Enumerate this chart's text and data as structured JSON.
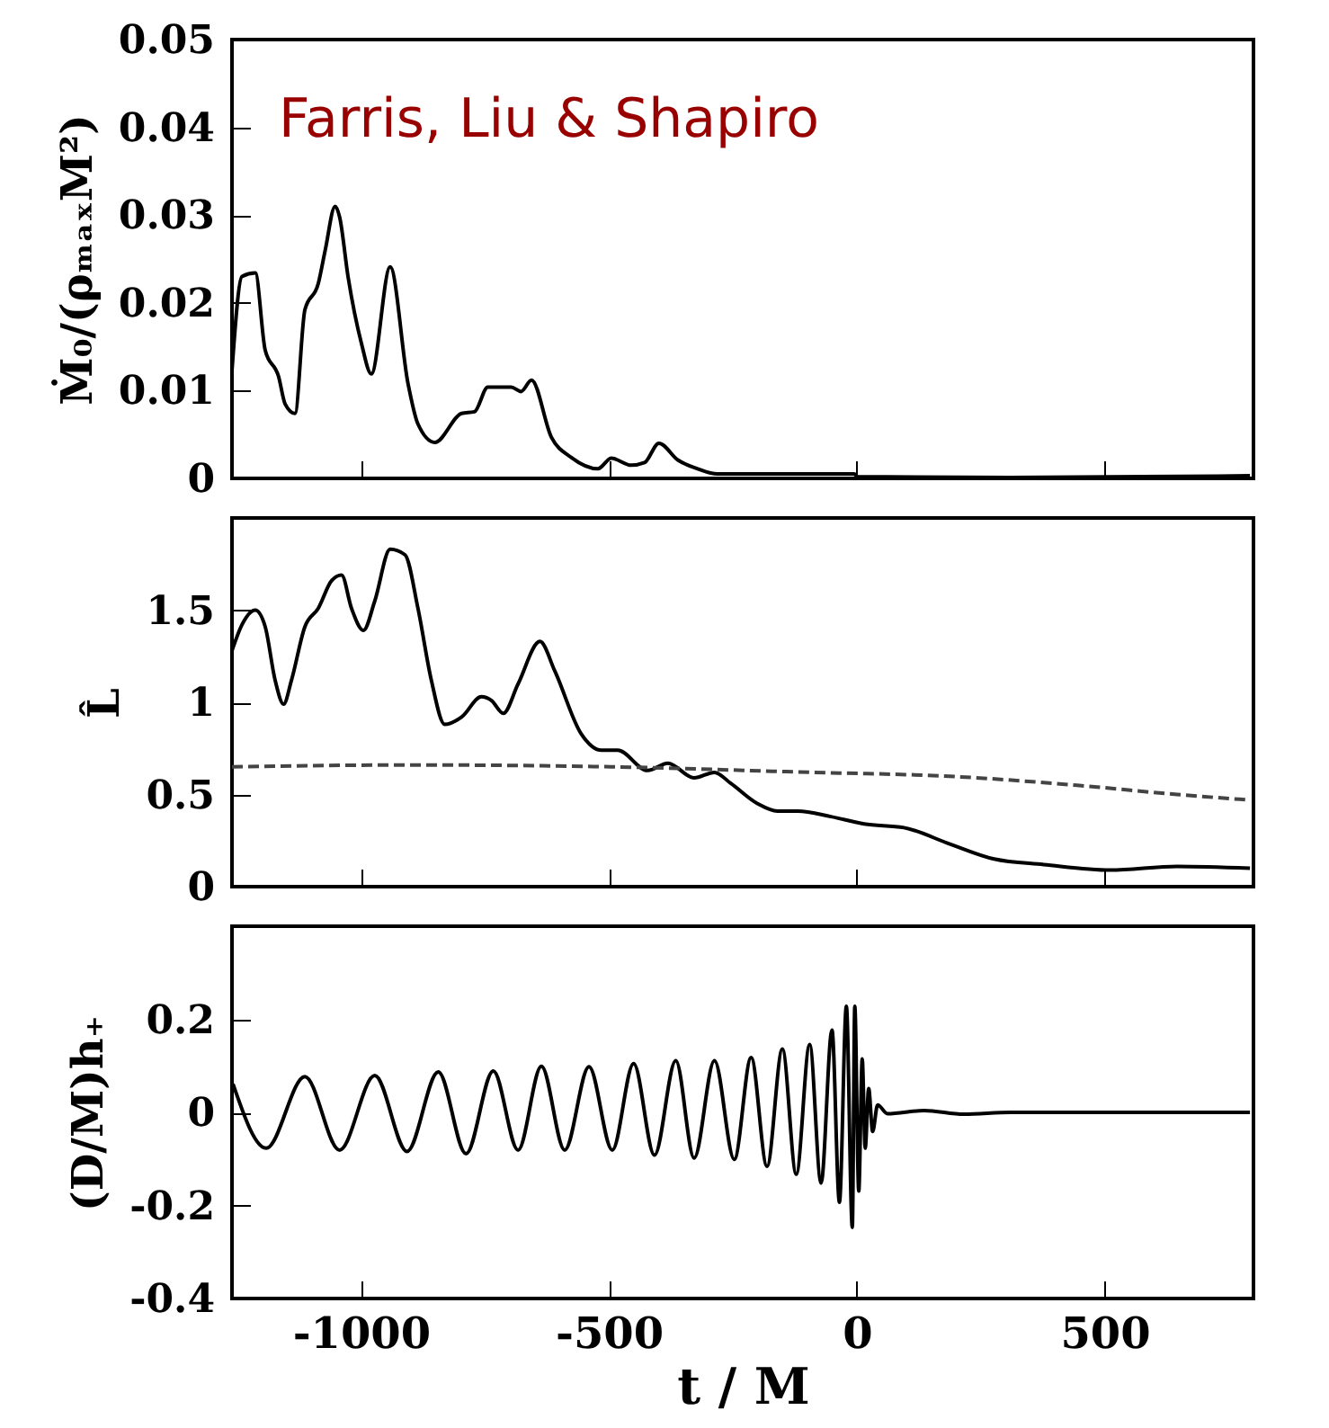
{
  "chart_data": [
    {
      "type": "line",
      "ylabel": "Ṁ₀/(ρₘₐₓM²)",
      "annotations": [
        "Farris, Liu & Shapiro"
      ],
      "xlim": [
        -1260,
        800
      ],
      "xticks": [
        -1000,
        -500,
        0,
        500
      ],
      "ylim": [
        0,
        0.05
      ],
      "yticks": [
        0,
        0.01,
        0.02,
        0.03,
        0.04,
        0.05
      ],
      "tick_labels": "y",
      "series": [
        {
          "color": "#000000",
          "x": [
            -1260,
            -1240,
            -1213,
            -1193,
            -1166,
            -1153,
            -1133,
            -1113,
            -1086,
            -1072,
            -1052,
            -1043,
            -1026,
            -999,
            -979,
            -941,
            -905,
            -885,
            -851,
            -797,
            -771,
            -744,
            -697,
            -677,
            -656,
            -616,
            -576,
            -522,
            -495,
            -455,
            -428,
            -399,
            -361,
            -321,
            -281,
            -93,
            -5,
            1,
            310,
            793
          ],
          "values": [
            0.0123,
            0.023,
            0.0234,
            0.0146,
            0.0116,
            0.0085,
            0.0074,
            0.0192,
            0.0222,
            0.026,
            0.031,
            0.0298,
            0.023,
            0.0154,
            0.0119,
            0.0241,
            0.0108,
            0.0062,
            0.0041,
            0.0074,
            0.0076,
            0.0104,
            0.0104,
            0.0099,
            0.0112,
            0.0047,
            0.0024,
            0.0011,
            0.0023,
            0.0015,
            0.0018,
            0.004,
            0.0021,
            0.0011,
            0.0005,
            0.0005,
            0.0005,
            0.0002,
            0.0001,
            0.0003
          ]
        }
      ]
    },
    {
      "type": "line",
      "ylabel": "L̂",
      "xlim": [
        -1260,
        800
      ],
      "xticks": [
        -1000,
        -500,
        0,
        500
      ],
      "ylim": [
        0,
        2
      ],
      "yticks": [
        0,
        0.5,
        1,
        1.5
      ],
      "tick_labels": "y",
      "series": [
        {
          "color": "#000000",
          "x": [
            -1260,
            -1240,
            -1213,
            -1193,
            -1173,
            -1156,
            -1140,
            -1113,
            -1086,
            -1059,
            -1039,
            -1019,
            -995,
            -972,
            -941,
            -911,
            -885,
            -858,
            -831,
            -797,
            -757,
            -737,
            -713,
            -683,
            -639,
            -609,
            -556,
            -515,
            -482,
            -422,
            -381,
            -328,
            -287,
            -254,
            -200,
            -160,
            -119,
            -52,
            15,
            95,
            189,
            277,
            377,
            511,
            646,
            793
          ],
          "values": [
            1.28,
            1.42,
            1.5,
            1.41,
            1.12,
            0.99,
            1.12,
            1.41,
            1.51,
            1.66,
            1.69,
            1.51,
            1.39,
            1.55,
            1.83,
            1.8,
            1.51,
            1.12,
            0.88,
            0.92,
            1.03,
            1.01,
            0.94,
            1.1,
            1.33,
            1.17,
            0.83,
            0.74,
            0.74,
            0.63,
            0.67,
            0.59,
            0.62,
            0.56,
            0.45,
            0.41,
            0.41,
            0.38,
            0.34,
            0.32,
            0.23,
            0.15,
            0.12,
            0.09,
            0.11,
            0.1
          ]
        },
        {
          "color": "#444444",
          "line_style": "dashed",
          "x": [
            -1260,
            -898,
            -495,
            -93,
            176,
            444,
            646,
            793
          ],
          "values": [
            0.65,
            0.66,
            0.65,
            0.62,
            0.6,
            0.55,
            0.5,
            0.47
          ]
        }
      ]
    },
    {
      "type": "line",
      "xlabel": "t / M",
      "ylabel": "(D/M)h₊",
      "xlim": [
        -1260,
        800
      ],
      "xticks": [
        -1000,
        -500,
        0,
        500
      ],
      "ylim": [
        -0.4,
        0.4
      ],
      "yticks": [
        -0.4,
        -0.2,
        0,
        0.2
      ],
      "series": [
        {
          "color": "#000000",
          "x": [
            -1258,
            -1191,
            -1113,
            -1043,
            -972,
            -907,
            -844,
            -788,
            -733,
            -683,
            -636,
            -589,
            -540,
            -493,
            -450,
            -408,
            -365,
            -328,
            -287,
            -247,
            -213,
            -181,
            -150,
            -122,
            -95,
            -72,
            -50,
            -35,
            -21,
            -9,
            -4,
            4,
            11,
            17,
            24,
            32,
            42,
            62,
            136,
            216,
            310,
            793
          ],
          "values": [
            0.061,
            -0.077,
            0.077,
            -0.081,
            0.079,
            -0.084,
            0.087,
            -0.089,
            0.089,
            -0.081,
            0.099,
            -0.081,
            0.098,
            -0.081,
            0.105,
            -0.092,
            0.111,
            -0.098,
            0.111,
            -0.101,
            0.118,
            -0.116,
            0.136,
            -0.133,
            0.146,
            -0.152,
            0.177,
            -0.193,
            0.228,
            -0.247,
            0.228,
            -0.169,
            0.115,
            -0.077,
            0.051,
            -0.041,
            0.016,
            -0.003,
            0.004,
            -0.004,
            0,
            0
          ]
        }
      ]
    }
  ]
}
